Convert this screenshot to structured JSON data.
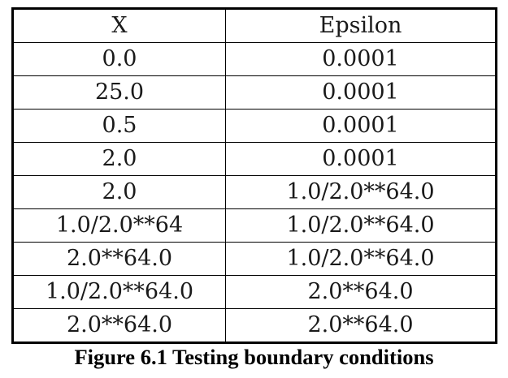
{
  "table": {
    "headers": [
      "X",
      "Epsilon"
    ],
    "rows": [
      [
        "0.0",
        "0.0001"
      ],
      [
        "25.0",
        "0.0001"
      ],
      [
        "0.5",
        "0.0001"
      ],
      [
        "2.0",
        "0.0001"
      ],
      [
        "2.0",
        "1.0/2.0**64.0"
      ],
      [
        "1.0/2.0**64",
        "1.0/2.0**64.0"
      ],
      [
        "2.0**64.0",
        "1.0/2.0**64.0"
      ],
      [
        "1.0/2.0**64.0",
        "2.0**64.0"
      ],
      [
        "2.0**64.0",
        "2.0**64.0"
      ]
    ]
  },
  "caption": "Figure 6.1 Testing boundary conditions"
}
